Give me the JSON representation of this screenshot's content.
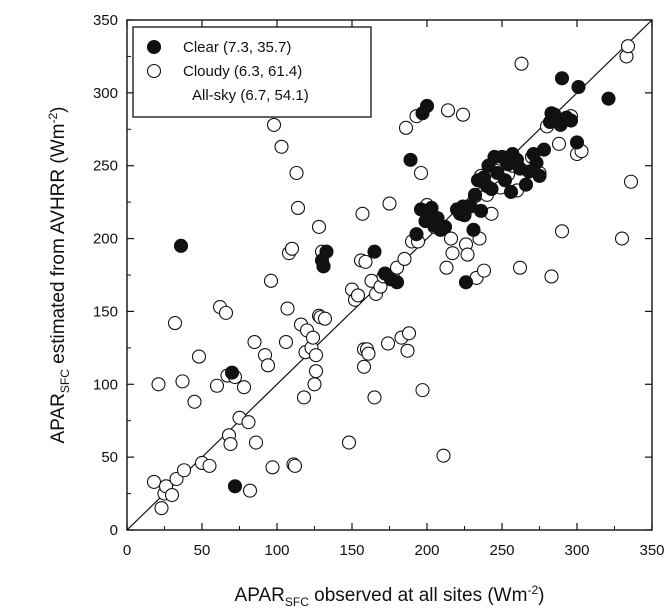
{
  "chart_data": {
    "type": "scatter",
    "xlabel": {
      "main": "APAR",
      "sub": "SFC",
      "rest": " observed at all sites (Wm",
      "sup": "-2",
      "end": ")"
    },
    "ylabel": {
      "main": "APAR",
      "sub": "SFC",
      "rest": " estimated from AVHRR (Wm",
      "sup": "-2",
      "end": ")"
    },
    "xlim": [
      0,
      350
    ],
    "ylim": [
      0,
      350
    ],
    "xticks": [
      0,
      50,
      100,
      150,
      200,
      250,
      300,
      350
    ],
    "yticks": [
      0,
      50,
      100,
      150,
      200,
      250,
      300,
      350
    ],
    "one_to_one_line": true,
    "legend_position": "top-left",
    "legend": [
      {
        "label": "Clear (7.3, 35.7)",
        "marker": "filled"
      },
      {
        "label": "Cloudy (6.3, 61.4)",
        "marker": "open"
      },
      {
        "label": "All-sky (6.7, 54.1)",
        "marker": "none"
      }
    ],
    "series": [
      {
        "name": "Clear (7.3, 35.7)",
        "marker": "filled",
        "points": [
          [
            36,
            195
          ],
          [
            70,
            108
          ],
          [
            72,
            30
          ],
          [
            130,
            185
          ],
          [
            131,
            181
          ],
          [
            133,
            191
          ],
          [
            165,
            191
          ],
          [
            172,
            176
          ],
          [
            176,
            172
          ],
          [
            180,
            170
          ],
          [
            189,
            254
          ],
          [
            193,
            203
          ],
          [
            196,
            220
          ],
          [
            197,
            286
          ],
          [
            199,
            212
          ],
          [
            200,
            291
          ],
          [
            201,
            219
          ],
          [
            203,
            221
          ],
          [
            205,
            209
          ],
          [
            207,
            214
          ],
          [
            209,
            206
          ],
          [
            212,
            208
          ],
          [
            220,
            220
          ],
          [
            222,
            217
          ],
          [
            224,
            222
          ],
          [
            225,
            216
          ],
          [
            226,
            170
          ],
          [
            229,
            222
          ],
          [
            231,
            206
          ],
          [
            232,
            230
          ],
          [
            234,
            240
          ],
          [
            236,
            219
          ],
          [
            238,
            242
          ],
          [
            240,
            236
          ],
          [
            241,
            250
          ],
          [
            243,
            234
          ],
          [
            245,
            256
          ],
          [
            247,
            245
          ],
          [
            250,
            256
          ],
          [
            252,
            240
          ],
          [
            254,
            251
          ],
          [
            256,
            232
          ],
          [
            257,
            258
          ],
          [
            260,
            254
          ],
          [
            262,
            248
          ],
          [
            266,
            237
          ],
          [
            268,
            246
          ],
          [
            271,
            258
          ],
          [
            273,
            252
          ],
          [
            275,
            243
          ],
          [
            278,
            261
          ],
          [
            282,
            280
          ],
          [
            283,
            286
          ],
          [
            285,
            285
          ],
          [
            286,
            281
          ],
          [
            289,
            278
          ],
          [
            290,
            310
          ],
          [
            293,
            283
          ],
          [
            296,
            281
          ],
          [
            300,
            266
          ],
          [
            301,
            304
          ],
          [
            321,
            296
          ]
        ]
      },
      {
        "name": "Cloudy (6.3, 61.4)",
        "marker": "open",
        "points": [
          [
            18,
            33
          ],
          [
            21,
            100
          ],
          [
            23,
            15
          ],
          [
            25,
            25
          ],
          [
            26,
            30
          ],
          [
            30,
            24
          ],
          [
            32,
            142
          ],
          [
            33,
            35
          ],
          [
            37,
            102
          ],
          [
            38,
            41
          ],
          [
            45,
            88
          ],
          [
            48,
            119
          ],
          [
            50,
            46
          ],
          [
            55,
            44
          ],
          [
            60,
            99
          ],
          [
            62,
            153
          ],
          [
            66,
            149
          ],
          [
            67,
            106
          ],
          [
            68,
            65
          ],
          [
            69,
            59
          ],
          [
            72,
            105
          ],
          [
            75,
            77
          ],
          [
            78,
            98
          ],
          [
            81,
            74
          ],
          [
            82,
            27
          ],
          [
            85,
            129
          ],
          [
            86,
            60
          ],
          [
            92,
            120
          ],
          [
            94,
            113
          ],
          [
            96,
            171
          ],
          [
            97,
            43
          ],
          [
            98,
            278
          ],
          [
            103,
            263
          ],
          [
            106,
            129
          ],
          [
            107,
            152
          ],
          [
            108,
            190
          ],
          [
            110,
            193
          ],
          [
            111,
            45
          ],
          [
            112,
            44
          ],
          [
            113,
            245
          ],
          [
            114,
            221
          ],
          [
            116,
            141
          ],
          [
            118,
            91
          ],
          [
            119,
            122
          ],
          [
            120,
            137
          ],
          [
            123,
            125
          ],
          [
            124,
            132
          ],
          [
            125,
            100
          ],
          [
            126,
            109
          ],
          [
            126,
            120
          ],
          [
            128,
            147
          ],
          [
            128,
            208
          ],
          [
            129,
            146
          ],
          [
            130,
            191
          ],
          [
            131,
            181
          ],
          [
            132,
            145
          ],
          [
            148,
            60
          ],
          [
            150,
            165
          ],
          [
            152,
            158
          ],
          [
            154,
            161
          ],
          [
            156,
            185
          ],
          [
            157,
            217
          ],
          [
            158,
            112
          ],
          [
            158,
            124
          ],
          [
            159,
            184
          ],
          [
            160,
            124
          ],
          [
            161,
            121
          ],
          [
            163,
            171
          ],
          [
            165,
            91
          ],
          [
            166,
            162
          ],
          [
            169,
            167
          ],
          [
            171,
            174
          ],
          [
            174,
            128
          ],
          [
            175,
            224
          ],
          [
            178,
            172
          ],
          [
            180,
            180
          ],
          [
            183,
            132
          ],
          [
            185,
            186
          ],
          [
            186,
            276
          ],
          [
            187,
            123
          ],
          [
            188,
            135
          ],
          [
            190,
            198
          ],
          [
            193,
            284
          ],
          [
            194,
            198
          ],
          [
            196,
            245
          ],
          [
            197,
            96
          ],
          [
            200,
            223
          ],
          [
            202,
            212
          ],
          [
            205,
            208
          ],
          [
            211,
            51
          ],
          [
            213,
            180
          ],
          [
            214,
            288
          ],
          [
            216,
            200
          ],
          [
            217,
            190
          ],
          [
            224,
            285
          ],
          [
            226,
            196
          ],
          [
            227,
            189
          ],
          [
            232,
            229
          ],
          [
            233,
            173
          ],
          [
            235,
            200
          ],
          [
            236,
            243
          ],
          [
            238,
            178
          ],
          [
            240,
            230
          ],
          [
            243,
            217
          ],
          [
            245,
            249
          ],
          [
            248,
            255
          ],
          [
            249,
            235
          ],
          [
            251,
            244
          ],
          [
            254,
            244
          ],
          [
            257,
            250
          ],
          [
            260,
            233
          ],
          [
            262,
            180
          ],
          [
            263,
            320
          ],
          [
            270,
            256
          ],
          [
            275,
            245
          ],
          [
            280,
            277
          ],
          [
            283,
            174
          ],
          [
            285,
            281
          ],
          [
            288,
            265
          ],
          [
            290,
            205
          ],
          [
            296,
            284
          ],
          [
            300,
            258
          ],
          [
            303,
            260
          ],
          [
            330,
            200
          ],
          [
            333,
            325
          ],
          [
            334,
            332
          ],
          [
            336,
            239
          ]
        ]
      }
    ]
  }
}
